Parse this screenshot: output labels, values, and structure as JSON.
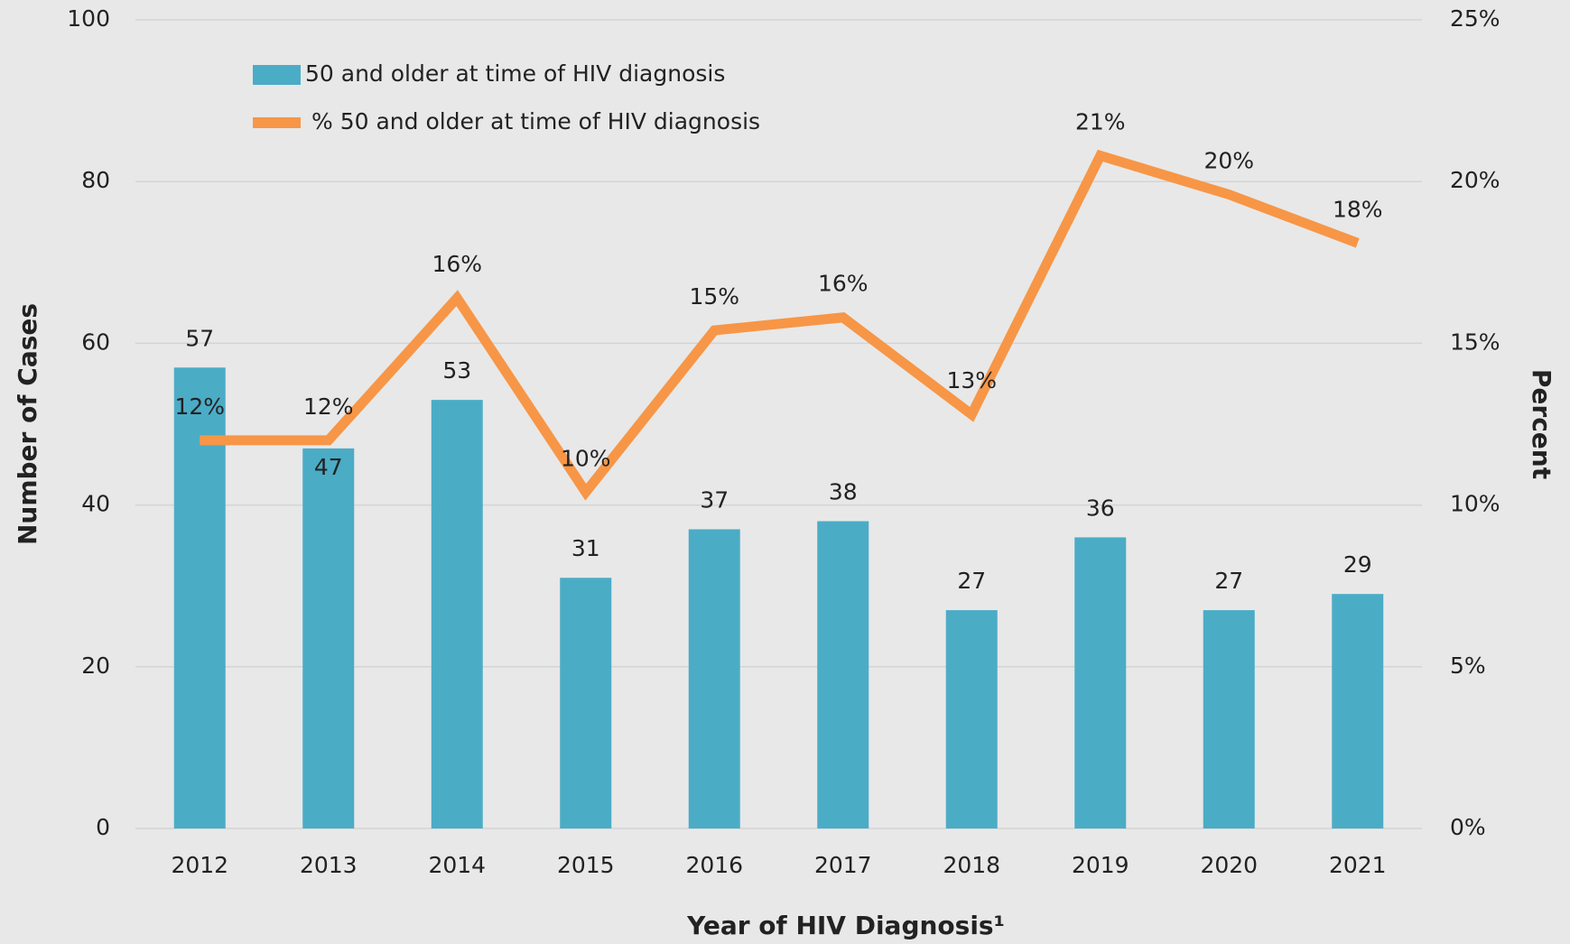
{
  "chart_data": {
    "type": "bar-line",
    "x_label": "Year of HIV Diagnosis¹",
    "y_label": "Number of Cases",
    "y2_label": "Percent",
    "categories": [
      "2012",
      "2013",
      "2014",
      "2015",
      "2016",
      "2017",
      "2018",
      "2019",
      "2020",
      "2021"
    ],
    "series": [
      {
        "name": "50 and older at time of HIV diagnosis",
        "type": "bar",
        "color": "#4bacc6",
        "values": [
          57,
          47,
          53,
          31,
          37,
          38,
          27,
          36,
          27,
          29
        ]
      },
      {
        "name": "% 50 and older at time of HIV diagnosis",
        "type": "line",
        "axis": "y2",
        "color": "#f79646",
        "values": [
          12.0,
          12.0,
          16.4,
          10.4,
          15.4,
          15.8,
          12.8,
          20.8,
          19.6,
          18.1
        ],
        "value_labels": [
          "12%",
          "12%",
          "16%",
          "10%",
          "15%",
          "16%",
          "13%",
          "21%",
          "20%",
          "18%"
        ]
      }
    ],
    "ylim": [
      0,
      100
    ],
    "yticks": [
      0,
      20,
      40,
      60,
      80,
      100
    ],
    "y2lim": [
      0,
      25
    ],
    "y2ticks": [
      {
        "value": 0,
        "label": "0%"
      },
      {
        "value": 5,
        "label": "5%"
      },
      {
        "value": 10,
        "label": "10%"
      },
      {
        "value": 15,
        "label": "15%"
      },
      {
        "value": 20,
        "label": "20%"
      },
      {
        "value": 25,
        "label": "25%"
      }
    ],
    "grid": true,
    "legend": "top-left"
  }
}
